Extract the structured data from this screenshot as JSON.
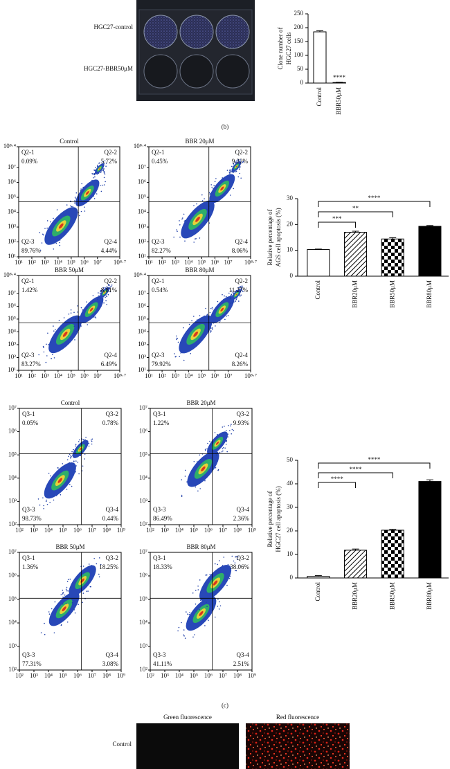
{
  "panel_b": {
    "plate_labels": [
      "HGC27-control",
      "HGC27-BBR50μM"
    ],
    "clone_chart": {
      "type": "bar",
      "y_label": [
        "Clone number of",
        "HGC27 cells"
      ],
      "categories": [
        "Control",
        "BBR50μM"
      ],
      "values": [
        185,
        2
      ],
      "errors": [
        4,
        1
      ],
      "fills": [
        "white",
        "white"
      ],
      "ylim": [
        0,
        250
      ],
      "yticks": [
        0,
        50,
        100,
        150,
        200,
        250
      ],
      "significance": [
        {
          "to": "BBR50μM",
          "label": "****"
        }
      ]
    },
    "caption": "(b)"
  },
  "panel_c": {
    "ags_flow": {
      "xlim": [
        10,
        501187233.6
      ],
      "xticks": [
        {
          "value": 10,
          "label": "10¹"
        },
        {
          "value": 100,
          "label": "10²"
        },
        {
          "value": 1000,
          "label": "10³"
        },
        {
          "value": 10000,
          "label": "10⁴"
        },
        {
          "value": 100000,
          "label": "10⁵"
        },
        {
          "value": 1000000,
          "label": "10⁶"
        },
        {
          "value": 10000000,
          "label": "10⁷"
        },
        {
          "value": 501187233.6,
          "label": "10⁸·⁷"
        }
      ],
      "ylim": [
        10,
        251188643.2
      ],
      "yticks": [
        {
          "value": 10,
          "label": "10¹"
        },
        {
          "value": 100,
          "label": "10²"
        },
        {
          "value": 1000,
          "label": "10³"
        },
        {
          "value": 10000,
          "label": "10⁴"
        },
        {
          "value": 100000,
          "label": "10⁵"
        },
        {
          "value": 1000000,
          "label": "10⁶"
        },
        {
          "value": 10000000,
          "label": "10⁷"
        },
        {
          "value": 251188643.2,
          "label": "10⁸·⁴"
        }
      ],
      "panels": [
        {
          "title": "Control",
          "quadrants": [
            {
              "name": "Q2-1",
              "value": "0.09%"
            },
            {
              "name": "Q2-2",
              "value": "5.72%"
            },
            {
              "name": "Q2-3",
              "value": "89.76%"
            },
            {
              "name": "Q2-4",
              "value": "4.44%"
            }
          ]
        },
        {
          "title": "BBR 20μM",
          "quadrants": [
            {
              "name": "Q2-1",
              "value": "0.45%"
            },
            {
              "name": "Q2-2",
              "value": "9.22%"
            },
            {
              "name": "Q2-3",
              "value": "82.27%"
            },
            {
              "name": "Q2-4",
              "value": "8.06%"
            }
          ]
        },
        {
          "title": "BBR 50μM",
          "quadrants": [
            {
              "name": "Q2-1",
              "value": "1.42%"
            },
            {
              "name": "Q2-2",
              "value": "8.81%"
            },
            {
              "name": "Q2-3",
              "value": "83.27%"
            },
            {
              "name": "Q2-4",
              "value": "6.49%"
            }
          ]
        },
        {
          "title": "BBR 80μM",
          "quadrants": [
            {
              "name": "Q2-1",
              "value": "0.54%"
            },
            {
              "name": "Q2-2",
              "value": "11.27%"
            },
            {
              "name": "Q2-3",
              "value": "79.92%"
            },
            {
              "name": "Q2-4",
              "value": "8.26%"
            }
          ]
        }
      ]
    },
    "ags_chart": {
      "type": "bar",
      "y_label": [
        "Relative percentage of",
        "AGS cell apoptosis (%)"
      ],
      "categories": [
        "Control",
        "BBR20μM",
        "BBR50μM",
        "BBR80μM"
      ],
      "values": [
        10.3,
        17.0,
        14.4,
        19.3
      ],
      "errors": [
        0.2,
        0.4,
        0.5,
        0.3
      ],
      "fills": [
        "white",
        "hatch",
        "checker",
        "black"
      ],
      "ylim": [
        0,
        30
      ],
      "yticks": [
        0,
        10,
        20,
        30
      ],
      "significance": [
        {
          "from": "Control",
          "to": "BBR80μM",
          "label": "****"
        },
        {
          "from": "Control",
          "to": "BBR50μM",
          "label": "**"
        },
        {
          "from": "Control",
          "to": "BBR20μM",
          "label": "***"
        }
      ]
    },
    "hgc27_flow": {
      "xlim": [
        100,
        1000000000
      ],
      "xticks": [
        {
          "value": 100,
          "label": "10²"
        },
        {
          "value": 1000,
          "label": "10³"
        },
        {
          "value": 10000,
          "label": "10⁴"
        },
        {
          "value": 100000,
          "label": "10⁵"
        },
        {
          "value": 1000000,
          "label": "10⁶"
        },
        {
          "value": 10000000,
          "label": "10⁷"
        },
        {
          "value": 100000000,
          "label": "10⁸"
        },
        {
          "value": 1000000000,
          "label": "10⁹"
        }
      ],
      "ylim": [
        100,
        10000000
      ],
      "yticks": [
        {
          "value": 100,
          "label": "10²"
        },
        {
          "value": 1000,
          "label": "10³"
        },
        {
          "value": 10000,
          "label": "10⁴"
        },
        {
          "value": 100000,
          "label": "10⁵"
        },
        {
          "value": 1000000,
          "label": "10⁶"
        },
        {
          "value": 10000000,
          "label": "10⁷"
        }
      ],
      "panels": [
        {
          "title": "Control",
          "quadrants": [
            {
              "name": "Q3-1",
              "value": "0.05%"
            },
            {
              "name": "Q3-2",
              "value": "0.78%"
            },
            {
              "name": "Q3-3",
              "value": "98.73%"
            },
            {
              "name": "Q3-4",
              "value": "0.44%"
            }
          ]
        },
        {
          "title": "BBR 20μM",
          "quadrants": [
            {
              "name": "Q3-1",
              "value": "1.22%"
            },
            {
              "name": "Q3-2",
              "value": "9.93%"
            },
            {
              "name": "Q3-3",
              "value": "86.49%"
            },
            {
              "name": "Q3-4",
              "value": "2.36%"
            }
          ]
        },
        {
          "title": "BBR 50μM",
          "quadrants": [
            {
              "name": "Q3-1",
              "value": "1.36%"
            },
            {
              "name": "Q3-2",
              "value": "18.25%"
            },
            {
              "name": "Q3-3",
              "value": "77.31%"
            },
            {
              "name": "Q3-4",
              "value": "3.08%"
            }
          ]
        },
        {
          "title": "BBR 80μM",
          "quadrants": [
            {
              "name": "Q3-1",
              "value": "18.33%"
            },
            {
              "name": "Q3-2",
              "value": "38.06%"
            },
            {
              "name": "Q3-3",
              "value": "41.11%"
            },
            {
              "name": "Q3-4",
              "value": "2.51%"
            }
          ]
        }
      ]
    },
    "hgc27_chart": {
      "type": "bar",
      "y_label": [
        "Relative percentage of",
        "HGC27 cell apoptosis (%)"
      ],
      "categories": [
        "Control",
        "BBR20μM",
        "BBR50μM",
        "BBR80μM"
      ],
      "values": [
        0.7,
        11.8,
        20.3,
        41.0
      ],
      "errors": [
        0.3,
        0.5,
        0.4,
        0.7
      ],
      "fills": [
        "white",
        "hatch",
        "checker",
        "black"
      ],
      "ylim": [
        0,
        50
      ],
      "yticks": [
        0,
        10,
        20,
        30,
        40,
        50
      ],
      "significance": [
        {
          "from": "Control",
          "to": "BBR80μM",
          "label": "****"
        },
        {
          "from": "Control",
          "to": "BBR50μM",
          "label": "****"
        },
        {
          "from": "Control",
          "to": "BBR20μM",
          "label": "****"
        }
      ]
    },
    "caption": "(c)"
  },
  "panel_d": {
    "column_titles": [
      "Green fluorescence",
      "Red fluorescence"
    ],
    "row_labels": [
      "Control"
    ]
  }
}
